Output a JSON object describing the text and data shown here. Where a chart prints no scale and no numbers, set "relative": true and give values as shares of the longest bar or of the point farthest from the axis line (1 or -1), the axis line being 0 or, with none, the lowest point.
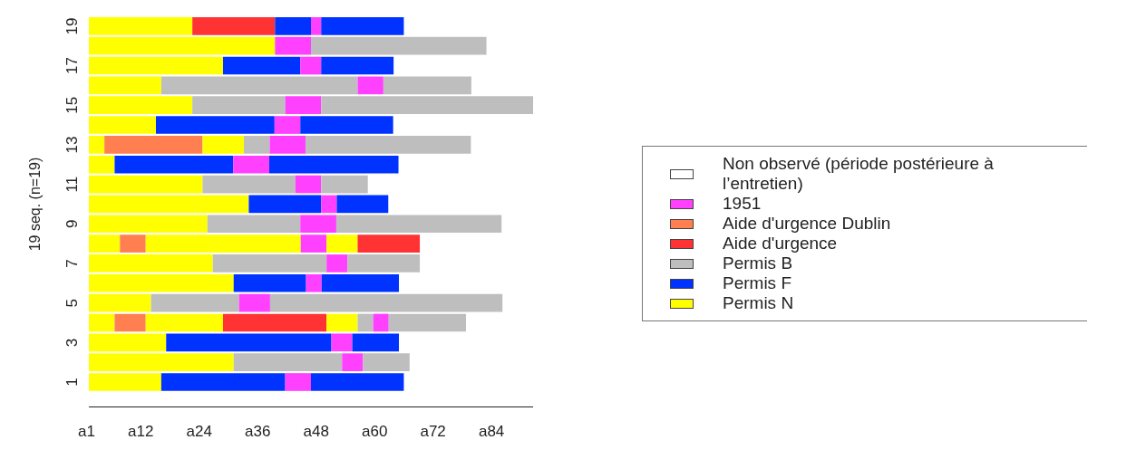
{
  "chart_data": {
    "type": "bar",
    "orientation": "horizontal",
    "stacked": true,
    "relative": true,
    "ylabel": "19 seq. (n=19)",
    "legend": "right",
    "categories": [
      "19",
      null,
      "17",
      null,
      "15",
      null,
      "13",
      null,
      "11",
      null,
      "9",
      null,
      "7",
      null,
      "5",
      null,
      "3",
      null,
      "1"
    ],
    "annotations": [
      "a1",
      "a12",
      "a24",
      "a36",
      "a48",
      "a60",
      "a72",
      "a84"
    ],
    "series": [
      {
        "name": "Non observé (période postérieure à l’entretien)",
        "color": "#ffffff",
        "values": [
          null,
          null,
          null,
          null,
          null,
          null,
          null,
          null,
          null,
          null,
          null,
          null,
          null,
          null,
          null,
          null,
          null,
          null,
          null
        ]
      },
      {
        "name": "1951",
        "color": "#ff40ff",
        "values": [
          null,
          null,
          null,
          null,
          null,
          null,
          null,
          null,
          null,
          null,
          null,
          null,
          null,
          null,
          null,
          null,
          null,
          null,
          null
        ]
      },
      {
        "name": "Aide d'urgence Dublin",
        "color": "#ff7f50",
        "values": [
          null,
          null,
          null,
          null,
          null,
          null,
          null,
          null,
          null,
          null,
          null,
          null,
          null,
          null,
          null,
          null,
          null,
          null,
          null
        ]
      },
      {
        "name": "Aide d'urgence",
        "color": "#ff3333",
        "values": [
          null,
          null,
          null,
          null,
          null,
          null,
          null,
          null,
          null,
          null,
          null,
          null,
          null,
          null,
          null,
          null,
          null,
          null,
          null
        ]
      },
      {
        "name": "Permis B",
        "color": "#bebebe",
        "values": [
          null,
          null,
          null,
          null,
          null,
          null,
          null,
          null,
          null,
          null,
          null,
          null,
          null,
          null,
          null,
          null,
          null,
          null,
          null
        ]
      },
      {
        "name": "Permis F",
        "color": "#0033ff",
        "values": [
          null,
          null,
          null,
          null,
          null,
          null,
          null,
          null,
          null,
          null,
          null,
          null,
          null,
          null,
          null,
          null,
          null,
          null,
          null
        ]
      },
      {
        "name": "Permis N",
        "color": "#ffff00",
        "values": [
          null,
          null,
          null,
          null,
          null,
          null,
          null,
          null,
          null,
          null,
          null,
          null,
          null,
          null,
          null,
          null,
          null,
          null,
          null
        ]
      },
      {
        "color": "#ffff00",
        "values": [
          0.233,
          0.419,
          0.302,
          0.163,
          0.233,
          0.151,
          0.035,
          0.058,
          0.256,
          0.36,
          0.267,
          0.07,
          0.279,
          0.326,
          0.14,
          0.058,
          0.174,
          0.326,
          0.163
        ]
      },
      {
        "colors": [
          "#ff3333",
          "#ff40ff",
          "#0033ff",
          "#bebebe",
          "#bebebe",
          "#0033ff",
          "#ff7f50",
          "#0033ff",
          "#bebebe",
          "#0033ff",
          "#bebebe",
          "#ff7f50",
          "#bebebe",
          "#0033ff",
          "#bebebe",
          "#ff7f50",
          "#0033ff",
          "#bebebe",
          "#0033ff"
        ],
        "values": [
          0.186,
          0.081,
          0.174,
          0.442,
          0.209,
          0.267,
          0.221,
          0.267,
          0.209,
          0.163,
          0.209,
          0.058,
          0.256,
          0.163,
          0.198,
          0.07,
          0.372,
          0.244,
          0.279
        ]
      },
      {
        "colors": [
          "#0033ff",
          "#bebebe",
          "#ff40ff",
          "#ff40ff",
          "#ff40ff",
          "#ff40ff",
          "#ffff00",
          "#ff40ff",
          "#ff40ff",
          "#ff40ff",
          "#ff40ff",
          "#ffff00",
          "#ff40ff",
          "#ff40ff",
          "#ff40ff",
          "#ffff00",
          "#ff40ff",
          "#ff40ff",
          "#ff40ff"
        ],
        "values": [
          0.081,
          0.395,
          0.047,
          0.058,
          0.081,
          0.058,
          0.093,
          0.081,
          0.058,
          0.035,
          0.081,
          0.349,
          0.047,
          0.035,
          0.07,
          0.174,
          0.047,
          0.047,
          0.058
        ]
      },
      {
        "colors": [
          "#ff40ff",
          null,
          "#0033ff",
          "#bebebe",
          "#bebebe",
          "#0033ff",
          "#bebebe",
          "#0033ff",
          "#bebebe",
          "#0033ff",
          "#bebebe",
          "#ff40ff",
          "#bebebe",
          "#0033ff",
          "#bebebe",
          "#ff3333",
          "#0033ff",
          "#bebebe",
          "#0033ff"
        ],
        "values": [
          0.023,
          null,
          0.163,
          0.198,
          0.477,
          0.209,
          0.058,
          0.291,
          0.105,
          0.116,
          0.372,
          0.058,
          0.163,
          0.174,
          0.523,
          0.233,
          0.105,
          0.105,
          0.209
        ]
      },
      {
        "colors": [
          "#0033ff",
          null,
          null,
          null,
          null,
          null,
          "#ff40ff",
          null,
          null,
          null,
          null,
          "#ffff00",
          null,
          null,
          null,
          "#ffff00",
          null,
          null,
          null
        ],
        "values": [
          0.186,
          null,
          null,
          null,
          null,
          null,
          0.081,
          null,
          null,
          null,
          null,
          0.07,
          null,
          null,
          null,
          0.07,
          null,
          null,
          null
        ]
      },
      {
        "colors": [
          null,
          null,
          null,
          null,
          null,
          null,
          "#bebebe",
          null,
          null,
          null,
          null,
          "#ff3333",
          null,
          null,
          null,
          "#bebebe",
          null,
          null,
          null
        ],
        "values": [
          null,
          null,
          null,
          null,
          null,
          null,
          0.372,
          null,
          null,
          null,
          null,
          0.14,
          null,
          null,
          null,
          0.035,
          null,
          null,
          null
        ]
      },
      {
        "colors": [
          null,
          null,
          null,
          null,
          null,
          null,
          null,
          null,
          null,
          null,
          null,
          null,
          null,
          null,
          null,
          "#ff40ff",
          null,
          null,
          null
        ],
        "values": [
          null,
          null,
          null,
          null,
          null,
          null,
          null,
          null,
          null,
          null,
          null,
          null,
          null,
          null,
          null,
          0.035,
          null,
          null,
          null
        ]
      },
      {
        "colors": [
          null,
          null,
          null,
          null,
          null,
          null,
          null,
          null,
          null,
          null,
          null,
          null,
          null,
          null,
          null,
          "#bebebe",
          null,
          null,
          null
        ],
        "values": [
          null,
          null,
          null,
          null,
          null,
          null,
          null,
          null,
          null,
          null,
          null,
          null,
          null,
          null,
          null,
          0.174,
          null,
          null,
          null
        ]
      }
    ]
  }
}
